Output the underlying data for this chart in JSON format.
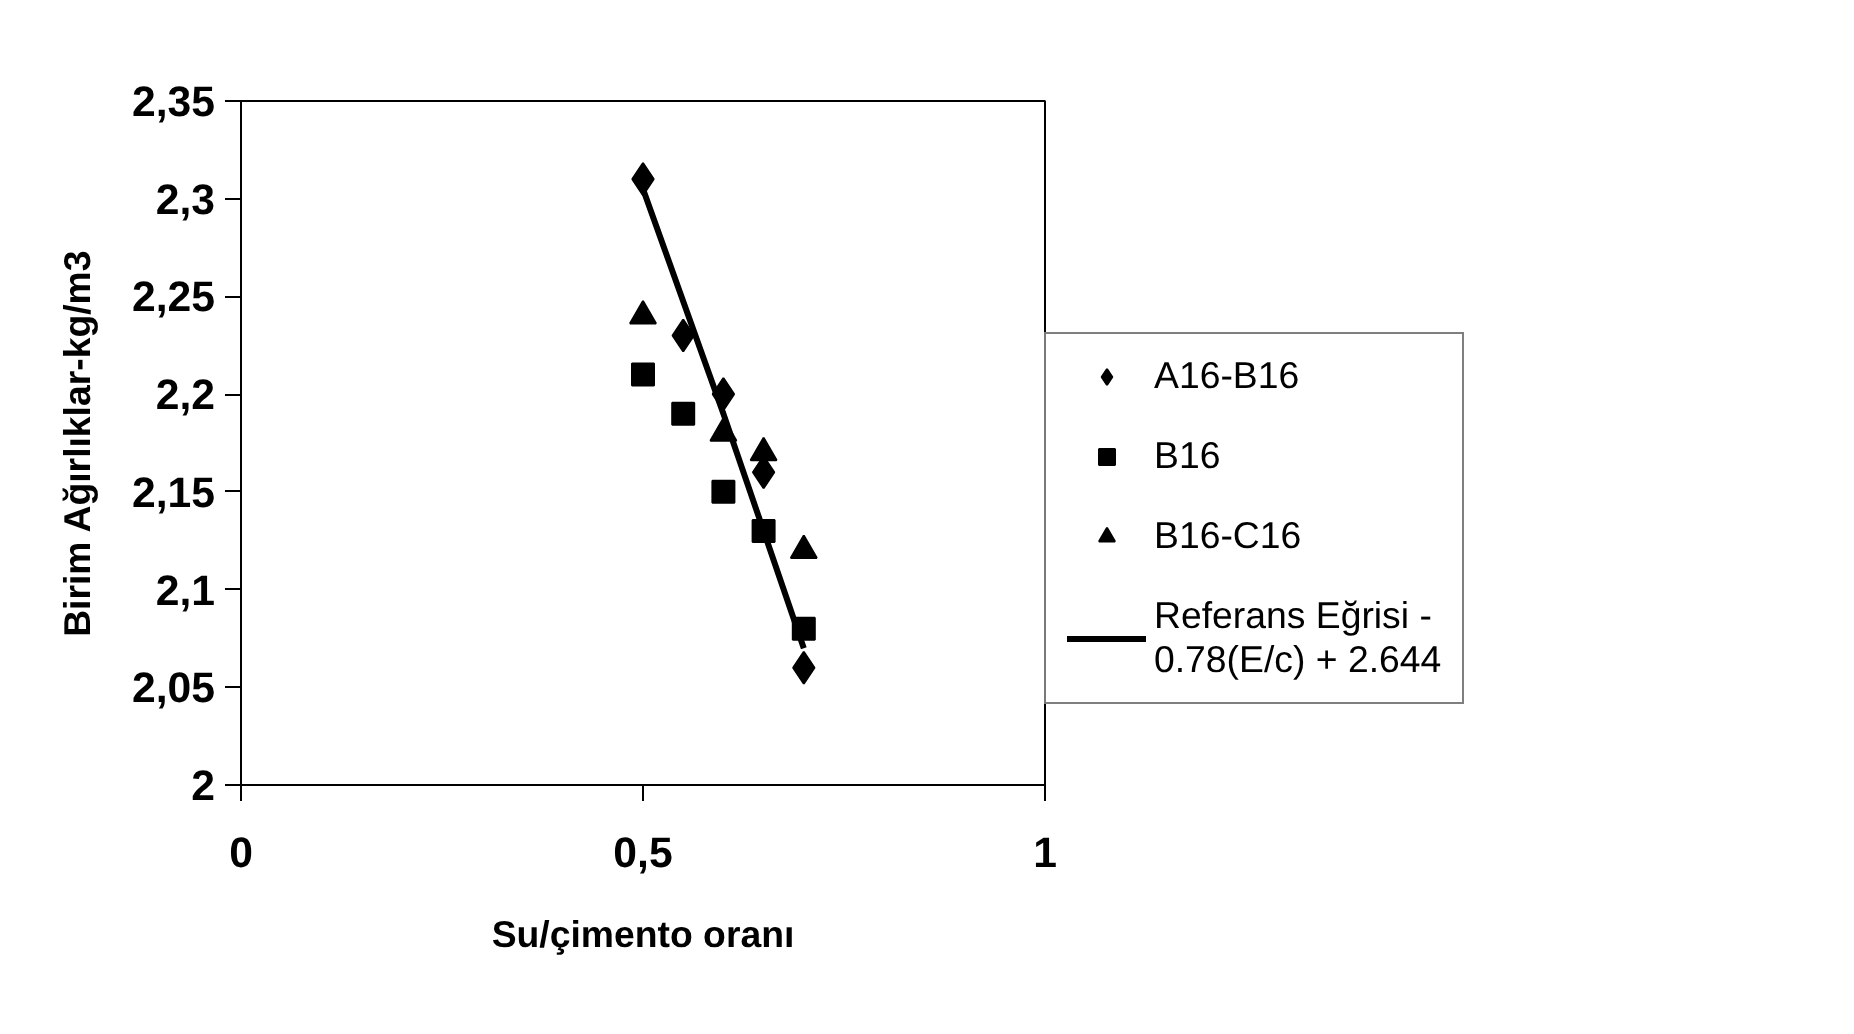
{
  "chart_data": {
    "type": "scatter",
    "xlabel": "Su/çimento oranı",
    "ylabel": "Birim Ağırlıklar-kg/m3",
    "xlim": [
      0,
      1
    ],
    "ylim": [
      2,
      2.35
    ],
    "xticks": [
      0,
      {
        "value": 0.5,
        "label": "0,5"
      },
      1
    ],
    "yticks": [
      2,
      {
        "value": 2.05,
        "label": "2,05"
      },
      {
        "value": 2.1,
        "label": "2,1"
      },
      {
        "value": 2.15,
        "label": "2,15"
      },
      {
        "value": 2.2,
        "label": "2,2"
      },
      {
        "value": 2.25,
        "label": "2,25"
      },
      {
        "value": 2.3,
        "label": "2,3"
      },
      {
        "value": 2.35,
        "label": "2,35"
      }
    ],
    "grid": false,
    "legend": "right",
    "series": [
      {
        "name": "A16-B16",
        "color": "#000000",
        "marker": "diamond",
        "x": [
          0.5,
          0.55,
          0.6,
          0.65,
          0.7
        ],
        "values": [
          2.31,
          2.23,
          2.2,
          2.16,
          2.06
        ]
      },
      {
        "name": "B16",
        "color": "#000000",
        "marker": "square",
        "x": [
          0.5,
          0.55,
          0.6,
          0.65,
          0.7
        ],
        "values": [
          2.21,
          2.19,
          2.15,
          2.13,
          2.08
        ]
      },
      {
        "name": "B16-C16",
        "color": "#000000",
        "marker": "triangle",
        "x": [
          0.5,
          0.6,
          0.65,
          0.7
        ],
        "values": [
          2.24,
          2.18,
          2.17,
          2.12
        ]
      },
      {
        "name": "Referans Eğrisi -\n0.78(E/c) + 2.644",
        "color": "#000000",
        "type": "line",
        "marker": "none",
        "line_style": "solid",
        "x": [
          0.5,
          0.6,
          0.7
        ],
        "values": [
          2.305,
          2.19,
          2.07
        ]
      }
    ]
  }
}
